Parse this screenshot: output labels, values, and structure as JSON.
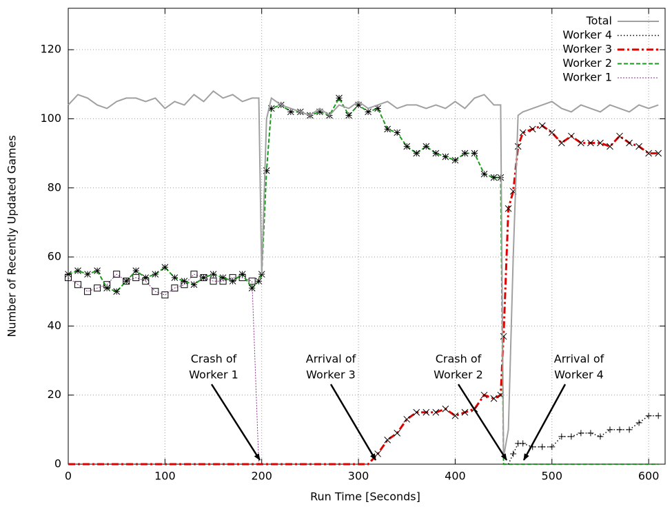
{
  "chart_data": {
    "type": "line",
    "xlabel": "Run Time [Seconds]",
    "ylabel": "Number of Recently Updated Games",
    "x": [
      0,
      10,
      20,
      30,
      40,
      50,
      60,
      70,
      80,
      90,
      100,
      110,
      120,
      130,
      140,
      150,
      160,
      170,
      180,
      190,
      197,
      200,
      205,
      210,
      220,
      230,
      240,
      250,
      260,
      270,
      280,
      290,
      300,
      310,
      320,
      330,
      340,
      350,
      360,
      370,
      380,
      390,
      400,
      410,
      420,
      430,
      440,
      447,
      450,
      455,
      460,
      465,
      470,
      480,
      490,
      500,
      510,
      520,
      530,
      540,
      550,
      560,
      570,
      580,
      590,
      600,
      610
    ],
    "series": [
      {
        "name": "Total",
        "color": "#a0a0a0",
        "style": "solid",
        "marker": "none",
        "values": [
          104,
          107,
          106,
          104,
          103,
          105,
          106,
          106,
          105,
          106,
          103,
          105,
          104,
          107,
          105,
          108,
          106,
          107,
          105,
          106,
          106,
          55,
          100,
          106,
          104,
          103,
          102,
          101,
          103,
          101,
          104,
          103,
          105,
          103,
          104,
          105,
          103,
          104,
          104,
          103,
          104,
          103,
          105,
          103,
          106,
          107,
          104,
          104,
          2,
          10,
          60,
          101,
          102,
          103,
          104,
          105,
          103,
          102,
          104,
          103,
          102,
          104,
          103,
          102,
          104,
          103,
          104
        ]
      },
      {
        "name": "Worker 4",
        "color": "#000000",
        "style": "dotted",
        "marker": "plus",
        "values": [
          null,
          null,
          null,
          null,
          null,
          null,
          null,
          null,
          null,
          null,
          null,
          null,
          null,
          null,
          null,
          null,
          null,
          null,
          null,
          null,
          null,
          null,
          null,
          null,
          null,
          null,
          null,
          null,
          null,
          null,
          null,
          null,
          null,
          null,
          null,
          null,
          null,
          null,
          null,
          null,
          null,
          null,
          null,
          null,
          null,
          null,
          null,
          null,
          null,
          0,
          3,
          6,
          6,
          5,
          5,
          5,
          8,
          8,
          9,
          9,
          8,
          10,
          10,
          10,
          12,
          14,
          14
        ]
      },
      {
        "name": "Worker 3",
        "color": "#e00000",
        "style": "dashdot",
        "marker": "x",
        "values": [
          0,
          0,
          0,
          0,
          0,
          0,
          0,
          0,
          0,
          0,
          0,
          0,
          0,
          0,
          0,
          0,
          0,
          0,
          0,
          0,
          0,
          0,
          0,
          0,
          0,
          0,
          0,
          0,
          0,
          0,
          0,
          0,
          0,
          0,
          3,
          7,
          9,
          13,
          15,
          15,
          15,
          16,
          14,
          15,
          16,
          20,
          19,
          20,
          37,
          74,
          79,
          92,
          96,
          97,
          98,
          96,
          93,
          95,
          93,
          93,
          93,
          92,
          95,
          93,
          92,
          90,
          90
        ]
      },
      {
        "name": "Worker 2",
        "color": "#1a9a1a",
        "style": "dashed",
        "marker": "asterisk",
        "values": [
          55,
          56,
          55,
          56,
          51,
          50,
          53,
          56,
          54,
          55,
          57,
          54,
          53,
          52,
          54,
          55,
          54,
          53,
          55,
          51,
          53,
          55,
          85,
          103,
          104,
          102,
          102,
          101,
          102,
          101,
          106,
          101,
          104,
          102,
          103,
          97,
          96,
          92,
          90,
          92,
          90,
          89,
          88,
          90,
          90,
          84,
          83,
          83,
          0,
          0,
          0,
          0,
          0,
          0,
          0,
          0,
          0,
          0,
          0,
          0,
          0,
          0,
          0,
          0,
          0,
          0,
          0
        ]
      },
      {
        "name": "Worker 1",
        "color": "#8a2d8a",
        "style": "fine",
        "marker": "square",
        "values": [
          54,
          52,
          50,
          51,
          52,
          55,
          53,
          54,
          53,
          50,
          49,
          51,
          52,
          55,
          54,
          53,
          53,
          54,
          54,
          53,
          0,
          null,
          null,
          null,
          null,
          null,
          null,
          null,
          null,
          null,
          null,
          null,
          null,
          null,
          null,
          null,
          null,
          null,
          null,
          null,
          null,
          null,
          null,
          null,
          null,
          null,
          null,
          null,
          null,
          null,
          null,
          null,
          null,
          null,
          null,
          null,
          null,
          null,
          null,
          null,
          null,
          null,
          null,
          null,
          null,
          null,
          null
        ]
      }
    ],
    "xlim": [
      0,
      617
    ],
    "ylim": [
      0,
      132
    ],
    "xticks": [
      0,
      100,
      200,
      300,
      400,
      500,
      600
    ],
    "yticks": [
      0,
      20,
      40,
      60,
      80,
      100,
      120
    ],
    "grid": true,
    "legend": "top-right",
    "annotations": [
      {
        "lines": [
          "Crash of",
          "Worker 1"
        ]
      },
      {
        "lines": [
          "Arrival of",
          "Worker 3"
        ]
      },
      {
        "lines": [
          "Crash of",
          "Worker 2"
        ]
      },
      {
        "lines": [
          "Arrival of",
          "Worker 4"
        ]
      }
    ]
  }
}
